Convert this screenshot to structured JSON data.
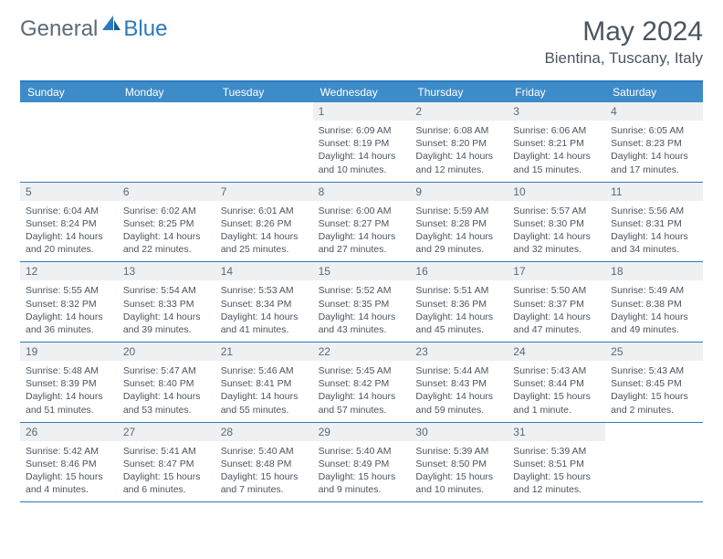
{
  "brand": {
    "part1": "General",
    "part2": "Blue"
  },
  "title": "May 2024",
  "location": "Bientina, Tuscany, Italy",
  "colors": {
    "header_bg": "#3d8bc9",
    "border": "#2a7abf",
    "daynum_bg": "#eef0f2",
    "text": "#4a5560"
  },
  "day_names": [
    "Sunday",
    "Monday",
    "Tuesday",
    "Wednesday",
    "Thursday",
    "Friday",
    "Saturday"
  ],
  "weeks": [
    [
      null,
      null,
      null,
      {
        "n": "1",
        "sr": "6:09 AM",
        "ss": "8:19 PM",
        "dl": "14 hours and 10 minutes."
      },
      {
        "n": "2",
        "sr": "6:08 AM",
        "ss": "8:20 PM",
        "dl": "14 hours and 12 minutes."
      },
      {
        "n": "3",
        "sr": "6:06 AM",
        "ss": "8:21 PM",
        "dl": "14 hours and 15 minutes."
      },
      {
        "n": "4",
        "sr": "6:05 AM",
        "ss": "8:23 PM",
        "dl": "14 hours and 17 minutes."
      }
    ],
    [
      {
        "n": "5",
        "sr": "6:04 AM",
        "ss": "8:24 PM",
        "dl": "14 hours and 20 minutes."
      },
      {
        "n": "6",
        "sr": "6:02 AM",
        "ss": "8:25 PM",
        "dl": "14 hours and 22 minutes."
      },
      {
        "n": "7",
        "sr": "6:01 AM",
        "ss": "8:26 PM",
        "dl": "14 hours and 25 minutes."
      },
      {
        "n": "8",
        "sr": "6:00 AM",
        "ss": "8:27 PM",
        "dl": "14 hours and 27 minutes."
      },
      {
        "n": "9",
        "sr": "5:59 AM",
        "ss": "8:28 PM",
        "dl": "14 hours and 29 minutes."
      },
      {
        "n": "10",
        "sr": "5:57 AM",
        "ss": "8:30 PM",
        "dl": "14 hours and 32 minutes."
      },
      {
        "n": "11",
        "sr": "5:56 AM",
        "ss": "8:31 PM",
        "dl": "14 hours and 34 minutes."
      }
    ],
    [
      {
        "n": "12",
        "sr": "5:55 AM",
        "ss": "8:32 PM",
        "dl": "14 hours and 36 minutes."
      },
      {
        "n": "13",
        "sr": "5:54 AM",
        "ss": "8:33 PM",
        "dl": "14 hours and 39 minutes."
      },
      {
        "n": "14",
        "sr": "5:53 AM",
        "ss": "8:34 PM",
        "dl": "14 hours and 41 minutes."
      },
      {
        "n": "15",
        "sr": "5:52 AM",
        "ss": "8:35 PM",
        "dl": "14 hours and 43 minutes."
      },
      {
        "n": "16",
        "sr": "5:51 AM",
        "ss": "8:36 PM",
        "dl": "14 hours and 45 minutes."
      },
      {
        "n": "17",
        "sr": "5:50 AM",
        "ss": "8:37 PM",
        "dl": "14 hours and 47 minutes."
      },
      {
        "n": "18",
        "sr": "5:49 AM",
        "ss": "8:38 PM",
        "dl": "14 hours and 49 minutes."
      }
    ],
    [
      {
        "n": "19",
        "sr": "5:48 AM",
        "ss": "8:39 PM",
        "dl": "14 hours and 51 minutes."
      },
      {
        "n": "20",
        "sr": "5:47 AM",
        "ss": "8:40 PM",
        "dl": "14 hours and 53 minutes."
      },
      {
        "n": "21",
        "sr": "5:46 AM",
        "ss": "8:41 PM",
        "dl": "14 hours and 55 minutes."
      },
      {
        "n": "22",
        "sr": "5:45 AM",
        "ss": "8:42 PM",
        "dl": "14 hours and 57 minutes."
      },
      {
        "n": "23",
        "sr": "5:44 AM",
        "ss": "8:43 PM",
        "dl": "14 hours and 59 minutes."
      },
      {
        "n": "24",
        "sr": "5:43 AM",
        "ss": "8:44 PM",
        "dl": "15 hours and 1 minute."
      },
      {
        "n": "25",
        "sr": "5:43 AM",
        "ss": "8:45 PM",
        "dl": "15 hours and 2 minutes."
      }
    ],
    [
      {
        "n": "26",
        "sr": "5:42 AM",
        "ss": "8:46 PM",
        "dl": "15 hours and 4 minutes."
      },
      {
        "n": "27",
        "sr": "5:41 AM",
        "ss": "8:47 PM",
        "dl": "15 hours and 6 minutes."
      },
      {
        "n": "28",
        "sr": "5:40 AM",
        "ss": "8:48 PM",
        "dl": "15 hours and 7 minutes."
      },
      {
        "n": "29",
        "sr": "5:40 AM",
        "ss": "8:49 PM",
        "dl": "15 hours and 9 minutes."
      },
      {
        "n": "30",
        "sr": "5:39 AM",
        "ss": "8:50 PM",
        "dl": "15 hours and 10 minutes."
      },
      {
        "n": "31",
        "sr": "5:39 AM",
        "ss": "8:51 PM",
        "dl": "15 hours and 12 minutes."
      },
      null
    ]
  ],
  "labels": {
    "sunrise": "Sunrise:",
    "sunset": "Sunset:",
    "daylight": "Daylight:"
  }
}
